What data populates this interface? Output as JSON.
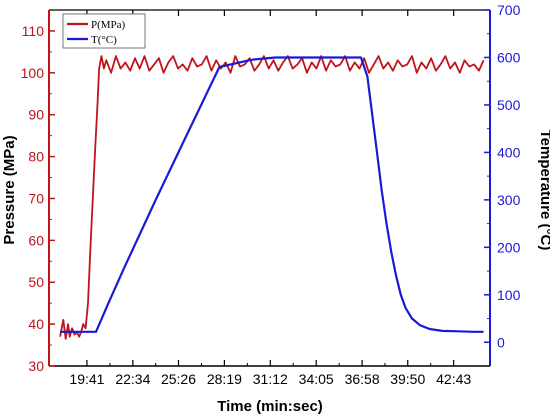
{
  "colors": {
    "pressure": "#c0141a",
    "temperature": "#1a1ad6",
    "axis": "#000000"
  },
  "chart_data": {
    "type": "line",
    "xlabel": "Time (min:sec)",
    "ylabel": "Pressure (MPa)",
    "ylabel2": "Temperature (°C)",
    "x_unit": "minutes",
    "xlim": [
      17.3,
      45.0
    ],
    "ylim": [
      30,
      115
    ],
    "ylim2": [
      -50,
      700
    ],
    "xticks": [
      {
        "label": "19:41",
        "value": 19.683
      },
      {
        "label": "22:34",
        "value": 22.567
      },
      {
        "label": "25:26",
        "value": 25.433
      },
      {
        "label": "28:19",
        "value": 28.317
      },
      {
        "label": "31:12",
        "value": 31.2
      },
      {
        "label": "34:05",
        "value": 34.083
      },
      {
        "label": "36:58",
        "value": 36.967
      },
      {
        "label": "39:50",
        "value": 39.833
      },
      {
        "label": "42:43",
        "value": 42.717
      }
    ],
    "yticks": [
      30,
      40,
      50,
      60,
      70,
      80,
      90,
      100,
      110
    ],
    "yticks2": [
      0,
      100,
      200,
      300,
      400,
      500,
      600,
      700
    ],
    "legend_placement": "top-left",
    "grid": false,
    "series": [
      {
        "name": "P(MPa)",
        "axis": "left",
        "x": [
          18.0,
          18.2,
          18.35,
          18.5,
          18.6,
          18.75,
          18.9,
          19.05,
          19.2,
          19.35,
          19.45,
          19.6,
          19.75,
          19.9,
          20.05,
          20.2,
          20.35,
          20.45,
          20.6,
          20.75,
          20.9,
          21.2,
          21.5,
          21.8,
          22.1,
          22.4,
          22.7,
          23.0,
          23.3,
          23.6,
          23.9,
          24.2,
          24.5,
          24.8,
          25.1,
          25.4,
          25.7,
          26.0,
          26.3,
          26.6,
          26.9,
          27.2,
          27.5,
          27.8,
          28.1,
          28.4,
          28.7,
          29.0,
          29.3,
          29.6,
          29.9,
          30.2,
          30.5,
          30.8,
          31.1,
          31.4,
          31.7,
          32.0,
          32.3,
          32.6,
          32.9,
          33.2,
          33.5,
          33.8,
          34.1,
          34.4,
          34.7,
          35.0,
          35.3,
          35.6,
          35.9,
          36.2,
          36.5,
          36.8,
          37.1,
          37.4,
          37.7,
          38.0,
          38.3,
          38.6,
          38.9,
          39.2,
          39.5,
          39.8,
          40.1,
          40.4,
          40.7,
          41.0,
          41.3,
          41.6,
          41.9,
          42.2,
          42.5,
          42.8,
          43.1,
          43.4,
          43.7,
          44.0,
          44.3,
          44.6
        ],
        "values": [
          37,
          41,
          36.5,
          40,
          37,
          39,
          37.5,
          38,
          37,
          38.5,
          40,
          39,
          45,
          58,
          70,
          82,
          93,
          101,
          104,
          101,
          103,
          100,
          104,
          101,
          102.5,
          100.5,
          103.5,
          101,
          104,
          100.5,
          102,
          103.5,
          100,
          102.5,
          104,
          101,
          102,
          100.5,
          103.5,
          101.5,
          102,
          104,
          100.5,
          103,
          101,
          102.5,
          100,
          104,
          101.5,
          102,
          103.5,
          100.5,
          102,
          104,
          101,
          103,
          100.5,
          102.5,
          104,
          101,
          102,
          103.5,
          100,
          102.5,
          101,
          104,
          100.5,
          103,
          101.5,
          102,
          104,
          100.5,
          102.5,
          101,
          103.5,
          100,
          102,
          104,
          101,
          102.5,
          100.5,
          103,
          101.5,
          102,
          104,
          100,
          102.5,
          101,
          103.5,
          100.5,
          102,
          104,
          101,
          102.5,
          100,
          103,
          101.5,
          102,
          100.5,
          103
        ]
      },
      {
        "name": "T(°C)",
        "axis": "right",
        "x": [
          18.0,
          19.0,
          20.0,
          20.25,
          21.0,
          22.0,
          24.0,
          26.0,
          28.0,
          30.0,
          31.5,
          32.5,
          33.3,
          34.0,
          35.0,
          36.0,
          36.9,
          37.3,
          37.6,
          37.9,
          38.2,
          38.5,
          38.8,
          39.1,
          39.4,
          39.7,
          40.1,
          40.6,
          41.2,
          42.0,
          43.0,
          44.0,
          44.6
        ],
        "values": [
          22,
          22,
          22,
          22,
          80,
          155,
          300,
          440,
          580,
          595,
          600,
          600,
          600,
          600,
          600,
          600,
          600,
          560,
          480,
          400,
          320,
          250,
          190,
          140,
          100,
          72,
          50,
          36,
          28,
          24,
          23,
          22,
          22
        ]
      }
    ]
  }
}
